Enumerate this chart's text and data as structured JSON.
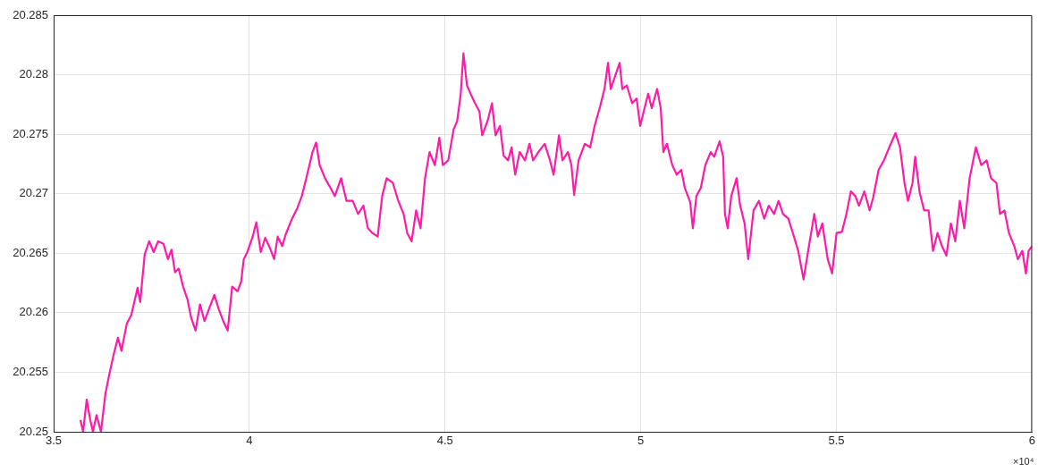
{
  "chart_data": {
    "type": "line",
    "x": [
      3.5684,
      3.5753,
      3.5844,
      3.5935,
      3.6004,
      3.6095,
      3.6209,
      3.6323,
      3.6414,
      3.6528,
      3.6642,
      3.6733,
      3.687,
      3.6984,
      3.7144,
      3.7212,
      3.7326,
      3.7441,
      3.7555,
      3.7669,
      3.7806,
      3.792,
      3.8011,
      3.8102,
      3.8193,
      3.8307,
      3.8421,
      3.8512,
      3.8626,
      3.874,
      3.8854,
      3.8968,
      3.9105,
      3.9219,
      3.9333,
      3.9447,
      3.9561,
      3.9698,
      3.979,
      3.9858,
      3.9949,
      4.0087,
      4.0178,
      4.0292,
      4.0406,
      4.0543,
      4.0634,
      4.0725,
      4.084,
      4.0931,
      4.109,
      4.1227,
      4.1341,
      4.1455,
      4.1615,
      4.1706,
      4.1797,
      4.1934,
      4.2071,
      4.2185,
      4.2345,
      4.2482,
      4.2642,
      4.2778,
      4.2915,
      4.3029,
      4.3143,
      4.328,
      4.3394,
      4.3508,
      4.3668,
      4.3805,
      4.3942,
      4.4033,
      4.4147,
      4.4261,
      4.4375,
      4.4489,
      4.4604,
      4.474,
      4.4854,
      4.4946,
      4.5082,
      4.5219,
      4.531,
      4.5402,
      4.547,
      4.5561,
      4.5653,
      4.5766,
      4.588,
      4.5949,
      4.6086,
      4.62,
      4.6291,
      4.6405,
      4.6496,
      4.661,
      4.6702,
      4.6793,
      4.6907,
      4.7044,
      4.7158,
      4.7249,
      4.7386,
      4.7546,
      4.7683,
      4.7774,
      4.7911,
      4.8002,
      4.8139,
      4.823,
      4.8299,
      4.8413,
      4.8572,
      4.8709,
      4.8823,
      4.896,
      4.9074,
      4.9165,
      4.9234,
      4.9348,
      4.9462,
      4.953,
      4.9644,
      4.9781,
      4.9895,
      4.9986,
      5.0077,
      5.0191,
      5.0282,
      5.0419,
      5.0511,
      5.0579,
      5.067,
      5.0807,
      5.0921,
      5.1035,
      5.1126,
      5.1264,
      5.1332,
      5.1423,
      5.1537,
      5.1651,
      5.1788,
      5.1879,
      5.2016,
      5.2107,
      5.2153,
      5.2222,
      5.2313,
      5.245,
      5.2541,
      5.2655,
      5.2747,
      5.2883,
      5.302,
      5.3157,
      5.3271,
      5.3408,
      5.3522,
      5.3636,
      5.3773,
      5.3887,
      5.4024,
      5.4161,
      5.4298,
      5.4435,
      5.4526,
      5.464,
      5.4777,
      5.4891,
      5.5005,
      5.5142,
      5.5256,
      5.537,
      5.5484,
      5.5576,
      5.5713,
      5.5849,
      5.5941,
      5.6078,
      5.6214,
      5.6351,
      5.6511,
      5.6625,
      5.6739,
      5.683,
      5.6944,
      5.7013,
      5.7127,
      5.7241,
      5.7355,
      5.7469,
      5.7583,
      5.7697,
      5.7811,
      5.7925,
      5.8039,
      5.8153,
      5.8267,
      5.8404,
      5.8564,
      5.8701,
      5.8838,
      5.8952,
      5.9089,
      5.918,
      5.9294,
      5.9408,
      5.9545,
      5.9637,
      5.9751,
      5.9842,
      5.9911,
      6.0
    ],
    "series": [
      {
        "color": "#ff1aa8",
        "values": [
          20.251,
          20.25,
          20.2527,
          20.251,
          20.25,
          20.2514,
          20.25,
          20.2532,
          20.2547,
          20.2564,
          20.2579,
          20.2568,
          20.2591,
          20.2598,
          20.2621,
          20.2609,
          20.2649,
          20.266,
          20.2651,
          20.266,
          20.2658,
          20.2645,
          20.2653,
          20.2634,
          20.2637,
          20.2622,
          20.2611,
          20.2596,
          20.2585,
          20.2607,
          20.2593,
          20.2603,
          20.2615,
          20.2603,
          20.2593,
          20.2585,
          20.2622,
          20.2618,
          20.2626,
          20.2645,
          20.2651,
          20.2664,
          20.2676,
          20.2651,
          20.2663,
          20.2653,
          20.2645,
          20.2664,
          20.2656,
          20.2666,
          20.2679,
          20.2688,
          20.2698,
          20.2713,
          20.2735,
          20.2743,
          20.2724,
          20.2713,
          20.2705,
          20.2698,
          20.2713,
          20.2694,
          20.2694,
          20.2683,
          20.269,
          20.2671,
          20.2667,
          20.2664,
          20.2698,
          20.2713,
          20.2709,
          20.2694,
          20.2683,
          20.2667,
          20.266,
          20.2686,
          20.2671,
          20.2713,
          20.2735,
          20.2724,
          20.2747,
          20.2724,
          20.2728,
          20.2754,
          20.2761,
          20.2784,
          20.2818,
          20.2791,
          20.2784,
          20.2776,
          20.2769,
          20.2749,
          20.2761,
          20.2776,
          20.2749,
          20.2757,
          20.2732,
          20.2728,
          20.2739,
          20.2716,
          20.2735,
          20.2728,
          20.2742,
          20.2728,
          20.2735,
          20.2742,
          20.2728,
          20.2716,
          20.2749,
          20.2728,
          20.2735,
          20.2724,
          20.2699,
          20.2728,
          20.2742,
          20.2739,
          20.2757,
          20.2773,
          20.2788,
          20.281,
          20.2788,
          20.2799,
          20.281,
          20.2788,
          20.2791,
          20.2776,
          20.278,
          20.2757,
          20.2769,
          20.2784,
          20.2772,
          20.2788,
          20.2772,
          20.2735,
          20.2742,
          20.2724,
          20.2716,
          20.272,
          20.2705,
          20.2693,
          20.2671,
          20.2698,
          20.2705,
          20.2724,
          20.2735,
          20.2731,
          20.2744,
          20.2731,
          20.2683,
          20.2671,
          20.2698,
          20.2713,
          20.269,
          20.2675,
          20.2645,
          20.2686,
          20.2694,
          20.2679,
          20.269,
          20.2683,
          20.2694,
          20.2683,
          20.2679,
          20.2667,
          20.2652,
          20.2628,
          20.2656,
          20.2683,
          20.2664,
          20.2675,
          20.2645,
          20.2633,
          20.2667,
          20.2668,
          20.2683,
          20.2702,
          20.2698,
          20.269,
          20.2702,
          20.2686,
          20.2697,
          20.272,
          20.2728,
          20.2739,
          20.2751,
          20.2739,
          20.2709,
          20.2694,
          20.2709,
          20.2731,
          20.2701,
          20.2686,
          20.2686,
          20.2652,
          20.2667,
          20.2656,
          20.2648,
          20.2675,
          20.266,
          20.2694,
          20.2671,
          20.2713,
          20.2739,
          20.2724,
          20.2728,
          20.2713,
          20.2709,
          20.2683,
          20.2686,
          20.2667,
          20.2656,
          20.2645,
          20.2652,
          20.2633,
          20.2652,
          20.2656
        ]
      }
    ],
    "xlim": [
      3.5,
      6
    ],
    "xticks": [
      3.5,
      4,
      4.5,
      5,
      5.5,
      6
    ],
    "ylim": [
      20.25,
      20.285
    ],
    "yticks": [
      20.25,
      20.255,
      20.26,
      20.265,
      20.27,
      20.275,
      20.28,
      20.285
    ],
    "grid": true,
    "marker": "none",
    "line_style": "solid",
    "annotations": [
      "×10⁴"
    ]
  }
}
